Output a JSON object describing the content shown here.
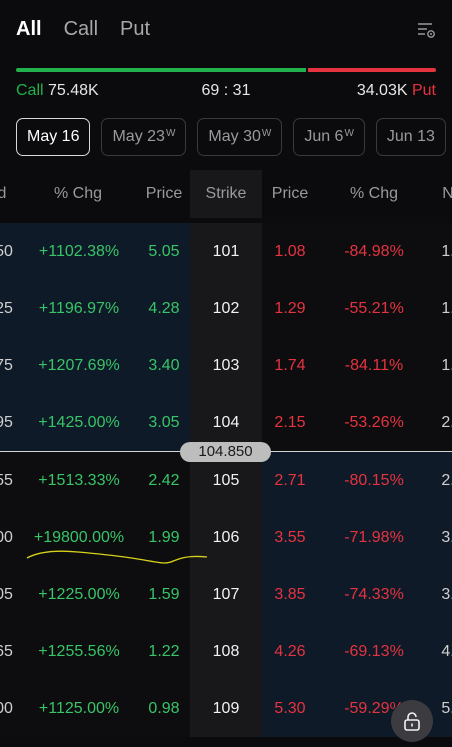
{
  "tabs": [
    {
      "label": "All",
      "active": true
    },
    {
      "label": "Call",
      "active": false
    },
    {
      "label": "Put",
      "active": false
    }
  ],
  "ratio": {
    "call_label": "Call",
    "call_volume": "75.48K",
    "ratio_text": "69 : 31",
    "put_volume": "34.03K",
    "put_label": "Put",
    "call_fraction": 0.69
  },
  "expiries": [
    {
      "label": "May 16",
      "weekly": "",
      "active": true
    },
    {
      "label": "May 23",
      "weekly": "W",
      "active": false
    },
    {
      "label": "May 30",
      "weekly": "W",
      "active": false
    },
    {
      "label": "Jun 6",
      "weekly": "W",
      "active": false
    },
    {
      "label": "Jun 13",
      "weekly": "",
      "active": false
    }
  ],
  "headers": {
    "call_partial": "d",
    "call_chg": "% Chg",
    "call_price": "Price",
    "strike": "Strike",
    "put_price": "Price",
    "put_chg": "% Chg",
    "put_partial": "N"
  },
  "underlying_price": "104.850",
  "rows": [
    {
      "call_partial": "50",
      "call_chg": "+1102.38%",
      "call_price": "5.05",
      "strike": "101",
      "put_price": "1.08",
      "put_chg": "-84.98%",
      "put_partial": "1."
    },
    {
      "call_partial": "25",
      "call_chg": "+1196.97%",
      "call_price": "4.28",
      "strike": "102",
      "put_price": "1.29",
      "put_chg": "-55.21%",
      "put_partial": "1."
    },
    {
      "call_partial": "75",
      "call_chg": "+1207.69%",
      "call_price": "3.40",
      "strike": "103",
      "put_price": "1.74",
      "put_chg": "-84.11%",
      "put_partial": "1."
    },
    {
      "call_partial": "95",
      "call_chg": "+1425.00%",
      "call_price": "3.05",
      "strike": "104",
      "put_price": "2.15",
      "put_chg": "-53.26%",
      "put_partial": "2."
    },
    {
      "call_partial": "55",
      "call_chg": "+1513.33%",
      "call_price": "2.42",
      "strike": "105",
      "put_price": "2.71",
      "put_chg": "-80.15%",
      "put_partial": "2."
    },
    {
      "call_partial": "00",
      "call_chg": "+19800.00%",
      "call_price": "1.99",
      "strike": "106",
      "put_price": "3.55",
      "put_chg": "-71.98%",
      "put_partial": "3."
    },
    {
      "call_partial": "05",
      "call_chg": "+1225.00%",
      "call_price": "1.59",
      "strike": "107",
      "put_price": "3.85",
      "put_chg": "-74.33%",
      "put_partial": "3."
    },
    {
      "call_partial": "65",
      "call_chg": "+1255.56%",
      "call_price": "1.22",
      "strike": "108",
      "put_price": "4.26",
      "put_chg": "-69.13%",
      "put_partial": "4."
    },
    {
      "call_partial": "00",
      "call_chg": "+1125.00%",
      "call_price": "0.98",
      "strike": "109",
      "put_price": "5.30",
      "put_chg": "-59.29%",
      "put_partial": "5."
    }
  ],
  "colors": {
    "positive": "#37c567",
    "negative": "#e5333f",
    "call_bar": "#22b14c",
    "put_bar": "#e5333f",
    "itm_background": "#0f1a28"
  },
  "icons": {
    "filter": "filter-settings-icon",
    "lock": "unlock-icon"
  }
}
